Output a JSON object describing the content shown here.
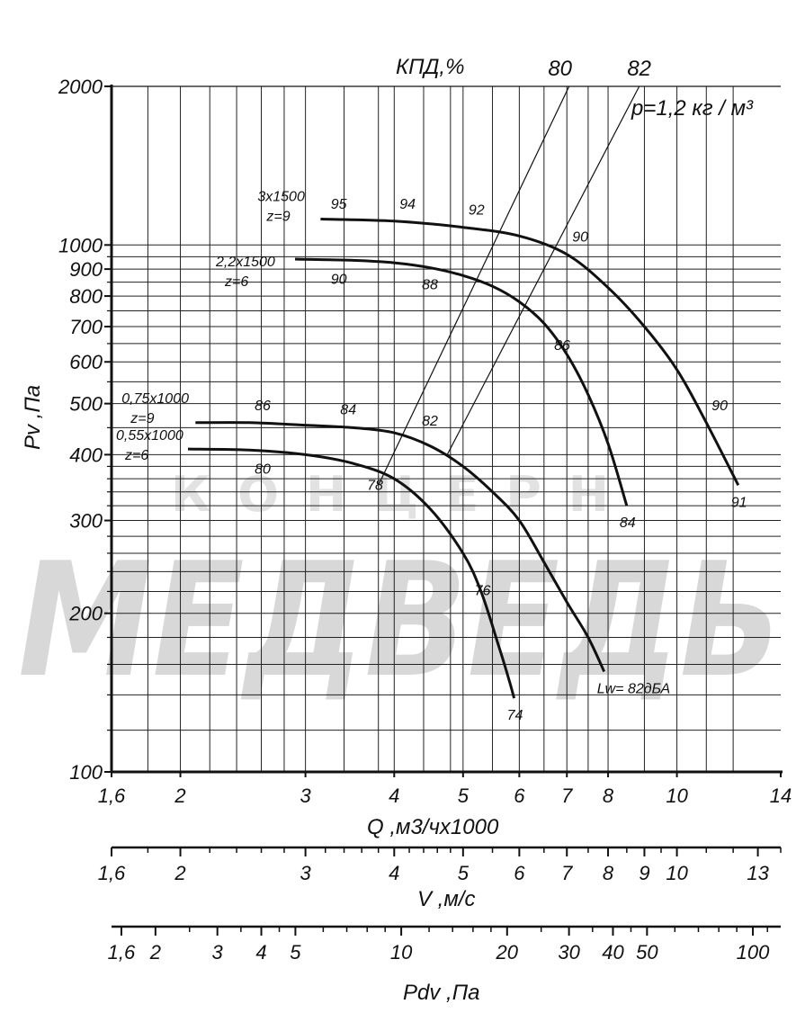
{
  "chart_data": {
    "type": "line",
    "title": "КПД,%",
    "xlabel": "Q ,м3/чх1000",
    "ylabel": "Pv ,Па",
    "density_note": "р=1,2 кг / м³",
    "x_scale": "log",
    "y_scale": "log",
    "xlim": [
      1.6,
      14
    ],
    "ylim": [
      100,
      2000
    ],
    "x_ticks": [
      {
        "v": 1.6,
        "t": "1,6"
      },
      {
        "v": 2,
        "t": "2"
      },
      {
        "v": 3,
        "t": "3"
      },
      {
        "v": 4,
        "t": "4"
      },
      {
        "v": 5,
        "t": "5"
      },
      {
        "v": 6,
        "t": "6"
      },
      {
        "v": 7,
        "t": "7"
      },
      {
        "v": 8,
        "t": "8"
      },
      {
        "v": 10,
        "t": "10"
      },
      {
        "v": 14,
        "t": "14"
      }
    ],
    "y_ticks": [
      {
        "v": 100,
        "t": "100"
      },
      {
        "v": 200,
        "t": "200"
      },
      {
        "v": 300,
        "t": "300"
      },
      {
        "v": 400,
        "t": "400"
      },
      {
        "v": 500,
        "t": "500"
      },
      {
        "v": 600,
        "t": "600"
      },
      {
        "v": 700,
        "t": "700"
      },
      {
        "v": 800,
        "t": "800"
      },
      {
        "v": 900,
        "t": "900"
      },
      {
        "v": 1000,
        "t": "1000"
      },
      {
        "v": 2000,
        "t": "2000"
      }
    ],
    "x_grid": [
      1.8,
      2,
      2.2,
      2.4,
      2.6,
      2.8,
      3,
      3.4,
      3.8,
      4,
      4.4,
      4.8,
      5,
      5.5,
      6,
      6.5,
      7,
      7.5,
      8,
      9,
      10,
      11,
      12
    ],
    "y_grid": [
      120,
      140,
      160,
      180,
      200,
      220,
      240,
      260,
      280,
      300,
      320,
      340,
      360,
      380,
      400,
      450,
      500,
      550,
      600,
      650,
      700,
      750,
      800,
      850,
      900,
      950,
      1000
    ],
    "efficiency_lines": [
      {
        "label": "80",
        "from": [
          3.8,
          350
        ],
        "to": [
          7.05,
          2000
        ]
      },
      {
        "label": "82",
        "from": [
          4.75,
          400
        ],
        "to": [
          8.85,
          2000
        ]
      }
    ],
    "series": [
      {
        "name": "3х1500 z=9",
        "label_lines": [
          "3х1500",
          "z=9"
        ],
        "end_label": "91",
        "points": [
          [
            3.15,
            1120
          ],
          [
            4.0,
            1110
          ],
          [
            5.0,
            1080
          ],
          [
            6.0,
            1040
          ],
          [
            7.0,
            960
          ],
          [
            8.0,
            830
          ],
          [
            9.0,
            700
          ],
          [
            10.0,
            580
          ],
          [
            11.0,
            460
          ],
          [
            12.2,
            350
          ]
        ],
        "efficiency_labels": [
          {
            "x": 3.2,
            "y": 1110,
            "t": "95"
          },
          {
            "x": 4.0,
            "y": 1110,
            "t": "94"
          },
          {
            "x": 5.0,
            "y": 1080,
            "t": "92"
          },
          {
            "x": 7.0,
            "y": 960,
            "t": "90"
          },
          {
            "x": 11.0,
            "y": 460,
            "t": "90"
          }
        ]
      },
      {
        "name": "2,2х1500 z=6",
        "label_lines": [
          "2,2х1500",
          "z=6"
        ],
        "end_label": "84",
        "points": [
          [
            2.9,
            940
          ],
          [
            3.5,
            935
          ],
          [
            4.0,
            925
          ],
          [
            4.5,
            905
          ],
          [
            5.0,
            875
          ],
          [
            5.5,
            835
          ],
          [
            6.0,
            780
          ],
          [
            6.5,
            710
          ],
          [
            7.0,
            620
          ],
          [
            7.5,
            520
          ],
          [
            8.0,
            420
          ],
          [
            8.5,
            320
          ]
        ],
        "efficiency_labels": [
          {
            "x": 3.2,
            "y": 935,
            "t": "90"
          },
          {
            "x": 4.3,
            "y": 912,
            "t": "88"
          },
          {
            "x": 6.6,
            "y": 700,
            "t": "86"
          }
        ]
      },
      {
        "name": "0,75х1000 z=9",
        "label_lines": [
          "0,75х1000",
          "z=9"
        ],
        "end_label": "Lw= 82дБА",
        "points": [
          [
            2.1,
            460
          ],
          [
            2.5,
            460
          ],
          [
            3.0,
            455
          ],
          [
            3.5,
            450
          ],
          [
            4.0,
            440
          ],
          [
            4.5,
            415
          ],
          [
            5.0,
            380
          ],
          [
            5.5,
            340
          ],
          [
            6.0,
            300
          ],
          [
            6.5,
            250
          ],
          [
            7.0,
            210
          ],
          [
            7.5,
            180
          ],
          [
            7.9,
            155
          ]
        ],
        "efficiency_labels": [
          {
            "x": 2.5,
            "y": 460,
            "t": "86"
          },
          {
            "x": 3.3,
            "y": 452,
            "t": "84"
          },
          {
            "x": 4.3,
            "y": 430,
            "t": "82"
          }
        ]
      },
      {
        "name": "0,55х1000 z=6",
        "label_lines": [
          "0,55х1000",
          "z=6"
        ],
        "end_label": "74",
        "points": [
          [
            2.05,
            410
          ],
          [
            2.5,
            408
          ],
          [
            3.0,
            400
          ],
          [
            3.5,
            385
          ],
          [
            4.0,
            360
          ],
          [
            4.5,
            315
          ],
          [
            5.0,
            260
          ],
          [
            5.3,
            220
          ],
          [
            5.6,
            175
          ],
          [
            5.8,
            150
          ],
          [
            5.9,
            138
          ]
        ],
        "efficiency_labels": [
          {
            "x": 2.5,
            "y": 408,
            "t": "80"
          },
          {
            "x": 3.6,
            "y": 380,
            "t": "78"
          },
          {
            "x": 5.1,
            "y": 240,
            "t": "76"
          }
        ]
      }
    ],
    "secondary_axes": [
      {
        "label": "V ,м/с",
        "ticks": [
          {
            "v": 1.6,
            "t": "1,6"
          },
          {
            "v": 2,
            "t": "2"
          },
          {
            "v": 3,
            "t": "3"
          },
          {
            "v": 4,
            "t": "4"
          },
          {
            "v": 5,
            "t": "5"
          },
          {
            "v": 6,
            "t": "6"
          },
          {
            "v": 7,
            "t": "7"
          },
          {
            "v": 8,
            "t": "8"
          },
          {
            "v": 9,
            "t": "9"
          },
          {
            "v": 10,
            "t": "10"
          },
          {
            "v": 13,
            "t": "13"
          }
        ],
        "range": [
          1.6,
          14
        ],
        "minor": [
          1.8,
          2.2,
          2.4,
          2.6,
          2.8,
          3.2,
          3.4,
          3.6,
          3.8,
          4.2,
          4.4,
          4.6,
          4.8,
          5.5,
          6.5,
          7.5,
          8.5,
          9.5,
          11,
          12,
          14
        ]
      },
      {
        "label": "Pdv ,Па",
        "ticks": [
          {
            "v": 1.6,
            "t": "1,6"
          },
          {
            "v": 2,
            "t": "2"
          },
          {
            "v": 3,
            "t": "3"
          },
          {
            "v": 4,
            "t": "4"
          },
          {
            "v": 5,
            "t": "5"
          },
          {
            "v": 10,
            "t": "10"
          },
          {
            "v": 20,
            "t": "20"
          },
          {
            "v": 30,
            "t": "30"
          },
          {
            "v": 40,
            "t": "40"
          },
          {
            "v": 50,
            "t": "50"
          },
          {
            "v": 100,
            "t": "100"
          }
        ],
        "range": [
          1.5,
          120
        ],
        "minor": [
          2.5,
          3.5,
          4.5,
          6,
          7,
          8,
          9,
          12,
          14,
          16,
          18,
          25,
          35,
          45,
          60,
          70,
          80,
          90,
          110
        ]
      }
    ]
  },
  "watermark": {
    "line1": "КОНЦЕРН",
    "line2": "МЕДВЕДЬ"
  },
  "colors": {
    "line": "#111111",
    "watermark": "#d8d8d8"
  }
}
